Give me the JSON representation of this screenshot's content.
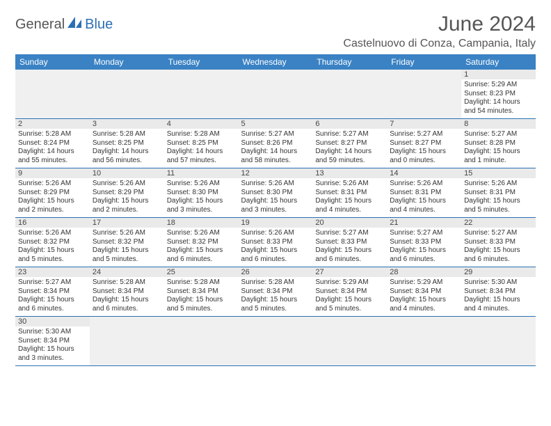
{
  "logo": {
    "part1": "General",
    "part2": "Blue"
  },
  "title": "June 2024",
  "location": "Castelnuovo di Conza, Campania, Italy",
  "colors": {
    "header_bg": "#3a82c4",
    "header_text": "#ffffff",
    "accent": "#2a6fb5",
    "daynum_bg": "#eaeaea",
    "empty_bg": "#f0f0f0",
    "text": "#333333",
    "title_text": "#555555"
  },
  "day_headers": [
    "Sunday",
    "Monday",
    "Tuesday",
    "Wednesday",
    "Thursday",
    "Friday",
    "Saturday"
  ],
  "first_weekday": 6,
  "days": [
    {
      "n": 1,
      "sunrise": "5:29 AM",
      "sunset": "8:23 PM",
      "daylight": "14 hours and 54 minutes."
    },
    {
      "n": 2,
      "sunrise": "5:28 AM",
      "sunset": "8:24 PM",
      "daylight": "14 hours and 55 minutes."
    },
    {
      "n": 3,
      "sunrise": "5:28 AM",
      "sunset": "8:25 PM",
      "daylight": "14 hours and 56 minutes."
    },
    {
      "n": 4,
      "sunrise": "5:28 AM",
      "sunset": "8:25 PM",
      "daylight": "14 hours and 57 minutes."
    },
    {
      "n": 5,
      "sunrise": "5:27 AM",
      "sunset": "8:26 PM",
      "daylight": "14 hours and 58 minutes."
    },
    {
      "n": 6,
      "sunrise": "5:27 AM",
      "sunset": "8:27 PM",
      "daylight": "14 hours and 59 minutes."
    },
    {
      "n": 7,
      "sunrise": "5:27 AM",
      "sunset": "8:27 PM",
      "daylight": "15 hours and 0 minutes."
    },
    {
      "n": 8,
      "sunrise": "5:27 AM",
      "sunset": "8:28 PM",
      "daylight": "15 hours and 1 minute."
    },
    {
      "n": 9,
      "sunrise": "5:26 AM",
      "sunset": "8:29 PM",
      "daylight": "15 hours and 2 minutes."
    },
    {
      "n": 10,
      "sunrise": "5:26 AM",
      "sunset": "8:29 PM",
      "daylight": "15 hours and 2 minutes."
    },
    {
      "n": 11,
      "sunrise": "5:26 AM",
      "sunset": "8:30 PM",
      "daylight": "15 hours and 3 minutes."
    },
    {
      "n": 12,
      "sunrise": "5:26 AM",
      "sunset": "8:30 PM",
      "daylight": "15 hours and 3 minutes."
    },
    {
      "n": 13,
      "sunrise": "5:26 AM",
      "sunset": "8:31 PM",
      "daylight": "15 hours and 4 minutes."
    },
    {
      "n": 14,
      "sunrise": "5:26 AM",
      "sunset": "8:31 PM",
      "daylight": "15 hours and 4 minutes."
    },
    {
      "n": 15,
      "sunrise": "5:26 AM",
      "sunset": "8:31 PM",
      "daylight": "15 hours and 5 minutes."
    },
    {
      "n": 16,
      "sunrise": "5:26 AM",
      "sunset": "8:32 PM",
      "daylight": "15 hours and 5 minutes."
    },
    {
      "n": 17,
      "sunrise": "5:26 AM",
      "sunset": "8:32 PM",
      "daylight": "15 hours and 5 minutes."
    },
    {
      "n": 18,
      "sunrise": "5:26 AM",
      "sunset": "8:32 PM",
      "daylight": "15 hours and 6 minutes."
    },
    {
      "n": 19,
      "sunrise": "5:26 AM",
      "sunset": "8:33 PM",
      "daylight": "15 hours and 6 minutes."
    },
    {
      "n": 20,
      "sunrise": "5:27 AM",
      "sunset": "8:33 PM",
      "daylight": "15 hours and 6 minutes."
    },
    {
      "n": 21,
      "sunrise": "5:27 AM",
      "sunset": "8:33 PM",
      "daylight": "15 hours and 6 minutes."
    },
    {
      "n": 22,
      "sunrise": "5:27 AM",
      "sunset": "8:33 PM",
      "daylight": "15 hours and 6 minutes."
    },
    {
      "n": 23,
      "sunrise": "5:27 AM",
      "sunset": "8:34 PM",
      "daylight": "15 hours and 6 minutes."
    },
    {
      "n": 24,
      "sunrise": "5:28 AM",
      "sunset": "8:34 PM",
      "daylight": "15 hours and 6 minutes."
    },
    {
      "n": 25,
      "sunrise": "5:28 AM",
      "sunset": "8:34 PM",
      "daylight": "15 hours and 5 minutes."
    },
    {
      "n": 26,
      "sunrise": "5:28 AM",
      "sunset": "8:34 PM",
      "daylight": "15 hours and 5 minutes."
    },
    {
      "n": 27,
      "sunrise": "5:29 AM",
      "sunset": "8:34 PM",
      "daylight": "15 hours and 5 minutes."
    },
    {
      "n": 28,
      "sunrise": "5:29 AM",
      "sunset": "8:34 PM",
      "daylight": "15 hours and 4 minutes."
    },
    {
      "n": 29,
      "sunrise": "5:30 AM",
      "sunset": "8:34 PM",
      "daylight": "15 hours and 4 minutes."
    },
    {
      "n": 30,
      "sunrise": "5:30 AM",
      "sunset": "8:34 PM",
      "daylight": "15 hours and 3 minutes."
    }
  ],
  "labels": {
    "sunrise": "Sunrise:",
    "sunset": "Sunset:",
    "daylight": "Daylight:"
  }
}
